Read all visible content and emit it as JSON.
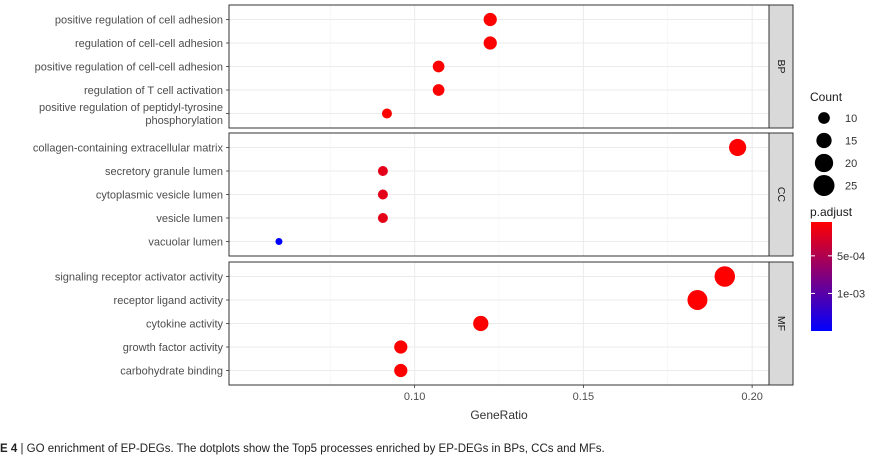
{
  "chart_data": {
    "type": "scatter",
    "xlabel": "GeneRatio",
    "ylabel": "",
    "xlim": [
      0.045,
      0.205
    ],
    "x_ticks": [
      "0.10",
      "0.15",
      "0.20"
    ],
    "x_tick_values": [
      0.1,
      0.15,
      0.2
    ],
    "grid": true,
    "legend_placement": "right",
    "panels": [
      {
        "name": "BP",
        "categories": [
          "positive regulation of cell adhesion",
          "regulation of cell-cell adhesion",
          "positive regulation of cell-cell adhesion",
          "regulation of T cell activation",
          "positive regulation of peptidyl-tyrosine phosphorylation"
        ],
        "category_lines": [
          [
            "positive regulation of cell adhesion"
          ],
          [
            "regulation of cell-cell adhesion"
          ],
          [
            "positive regulation of cell-cell adhesion"
          ],
          [
            "regulation of T cell activation"
          ],
          [
            "positive regulation of peptidyl-tyrosine",
            "phosphorylation"
          ]
        ],
        "gene_ratio": [
          0.1224,
          0.1224,
          0.1071,
          0.1071,
          0.0918
        ],
        "count": [
          12,
          12,
          10,
          10,
          8
        ],
        "p_adjust": [
          5e-05,
          5e-05,
          5e-05,
          5e-05,
          5e-05
        ]
      },
      {
        "name": "CC",
        "categories": [
          "collagen-containing extracellular matrix",
          "secretory granule lumen",
          "cytoplasmic vesicle lumen",
          "vesicle lumen",
          "vacuolar lumen"
        ],
        "category_lines": [
          [
            "collagen-containing extracellular matrix"
          ],
          [
            "secretory granule lumen"
          ],
          [
            "cytoplasmic vesicle lumen"
          ],
          [
            "vesicle lumen"
          ],
          [
            "vacuolar lumen"
          ]
        ],
        "gene_ratio": [
          0.1957,
          0.0906,
          0.0906,
          0.0906,
          0.0598
        ],
        "count": [
          18,
          8,
          8,
          8,
          5
        ],
        "p_adjust": [
          5e-05,
          0.0002,
          0.0002,
          0.0002,
          0.0015
        ]
      },
      {
        "name": "MF",
        "categories": [
          "signaling receptor activator activity",
          "receptor ligand activity",
          "cytokine activity",
          "growth factor activity",
          "carbohydrate binding"
        ],
        "category_lines": [
          [
            "signaling receptor activator activity"
          ],
          [
            "receptor ligand activity"
          ],
          [
            "cytokine activity"
          ],
          [
            "growth factor activity"
          ],
          [
            "carbohydrate binding"
          ]
        ],
        "gene_ratio": [
          0.1919,
          0.1838,
          0.1196,
          0.0959,
          0.0959
        ],
        "count": [
          24,
          23,
          15,
          12,
          12
        ],
        "p_adjust": [
          5e-05,
          5e-05,
          5e-05,
          5e-05,
          5e-05
        ]
      }
    ],
    "size_legend": {
      "title": "Count",
      "values": [
        10,
        15,
        20,
        25
      ]
    },
    "color_legend": {
      "title": "p.adjust",
      "labels": [
        "5e-04",
        "1e-03"
      ],
      "label_values": [
        0.0005,
        0.001
      ],
      "range": [
        5e-05,
        0.0015
      ],
      "low_color": "#ff0000",
      "high_color": "#0000ff"
    }
  },
  "caption": {
    "figure_label": "E 4",
    "text": "| GO enrichment of EP-DEGs. The dotplots show the Top5 processes enriched by EP-DEGs in BPs, CCs and MFs."
  },
  "colors": {
    "panel_border": "#333333",
    "grid": "#ebebeb",
    "strip_fill": "#d9d9d9",
    "text": "#333333"
  }
}
